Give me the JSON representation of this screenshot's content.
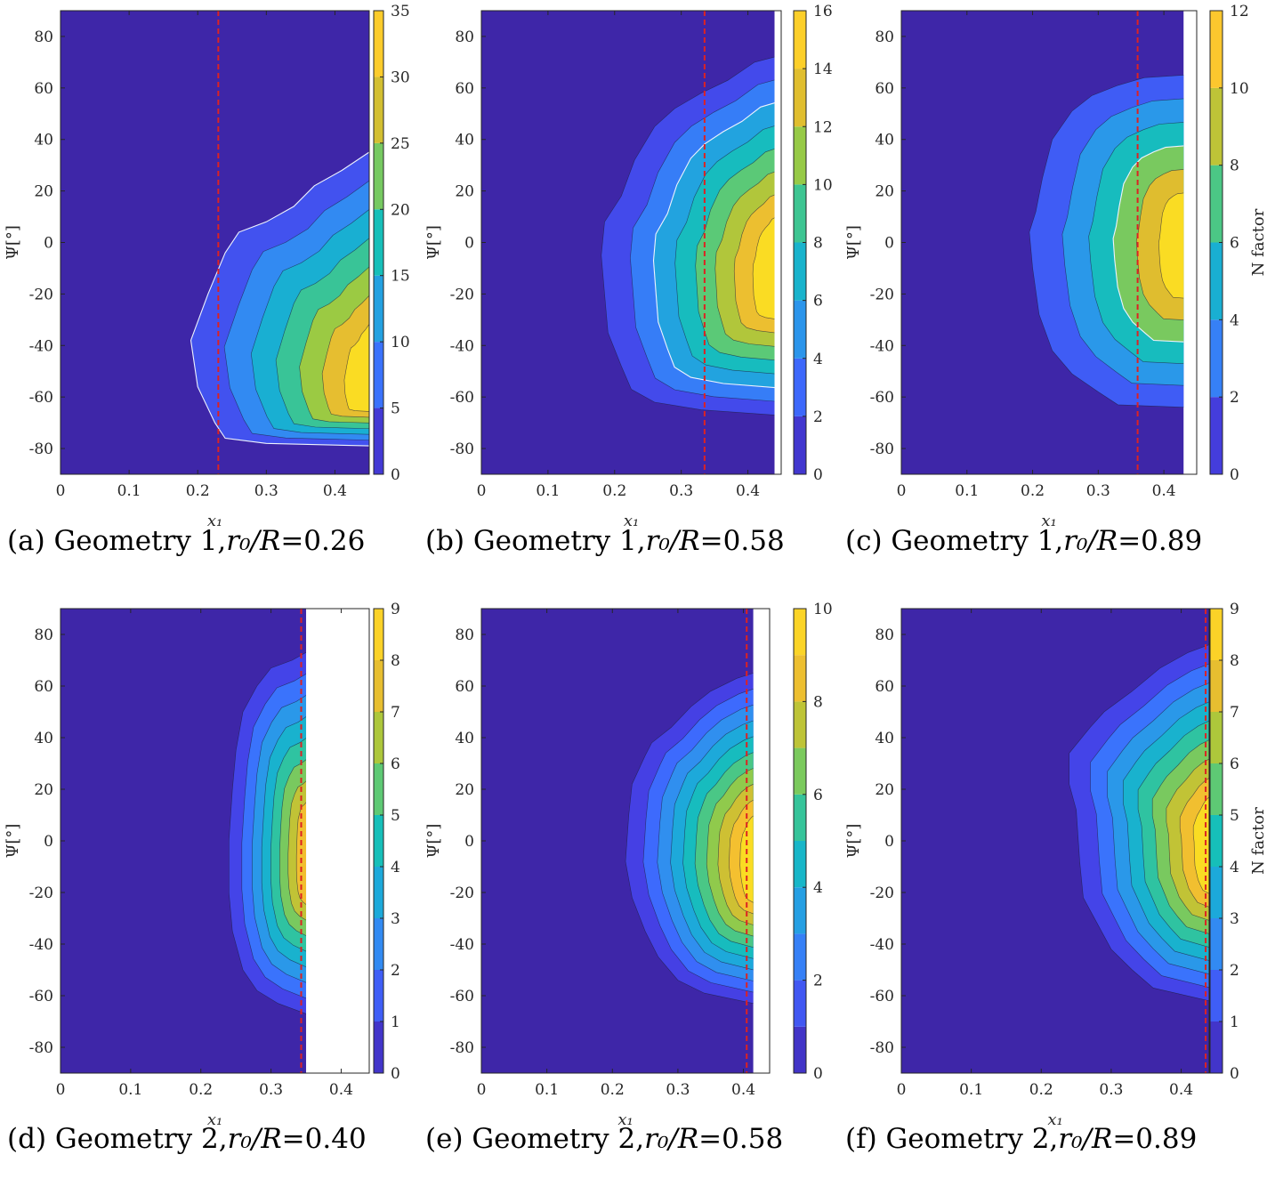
{
  "colors": {
    "colormap": [
      "#3e26a8",
      "#4541e6",
      "#3c6dfe",
      "#2f92ee",
      "#1aacd7",
      "#16bfb9",
      "#56c97b",
      "#a0ca3f",
      "#dcbd2f",
      "#fdc131",
      "#f9e71d"
    ],
    "marker_line": "#dd2222",
    "neutral_line": "#eef4ff"
  },
  "chart_data": [
    {
      "type": "contourf",
      "caption": {
        "letter": "(a)",
        "text": "Geometry 1,",
        "var": "r₀/R",
        "value": "=0.26"
      },
      "xlabel": "x₁",
      "ylabel": "Ψ[°]",
      "xlim": [
        0,
        0.45
      ],
      "ylim": [
        -90,
        90
      ],
      "xticks": [
        0,
        0.1,
        0.2,
        0.3,
        0.4
      ],
      "xticklabels": [
        "0",
        "0.1",
        "0.2",
        "0.3",
        "0.4"
      ],
      "yticks": [
        -80,
        -60,
        -40,
        -20,
        0,
        20,
        40,
        60,
        80
      ],
      "yticklabels": [
        "-80",
        "-60",
        "-40",
        "-20",
        "0",
        "20",
        "40",
        "60",
        "80"
      ],
      "data_xmax": 0.45,
      "x_threshold": 0.23,
      "levels": [
        0,
        5,
        10,
        15,
        20,
        25,
        30,
        35
      ],
      "clim": [
        0,
        35
      ],
      "peak": 31,
      "colorbar_ticks": [
        0,
        5,
        10,
        15,
        20,
        25,
        30,
        35
      ],
      "colorbar_label": "",
      "front": {
        "outer": [
          [
            0.455,
            36
          ],
          [
            0.41,
            28
          ],
          [
            0.37,
            22
          ],
          [
            0.34,
            14
          ],
          [
            0.3,
            8
          ],
          [
            0.26,
            4
          ],
          [
            0.24,
            -4
          ],
          [
            0.215,
            -20
          ],
          [
            0.19,
            -38
          ],
          [
            0.2,
            -56
          ],
          [
            0.225,
            -70
          ],
          [
            0.24,
            -76
          ],
          [
            0.3,
            -78
          ],
          [
            0.455,
            -79
          ]
        ],
        "peak_y": -60,
        "peak_h": 12
      },
      "tracer": 1
    },
    {
      "type": "contourf",
      "caption": {
        "letter": "(b)",
        "text": "Geometry 1,",
        "var": "r₀/R",
        "value": "=0.58"
      },
      "xlabel": "x₁",
      "ylabel": "Ψ[°]",
      "xlim": [
        0,
        0.45
      ],
      "ylim": [
        -90,
        90
      ],
      "xticks": [
        0,
        0.1,
        0.2,
        0.3,
        0.4
      ],
      "xticklabels": [
        "0",
        "0.1",
        "0.2",
        "0.3",
        "0.4"
      ],
      "yticks": [
        -80,
        -60,
        -40,
        -20,
        0,
        20,
        40,
        60,
        80
      ],
      "yticklabels": [
        "-80",
        "-60",
        "-40",
        "-20",
        "0",
        "20",
        "40",
        "60",
        "80"
      ],
      "data_xmax": 0.44,
      "x_threshold": 0.335,
      "levels": [
        0,
        2,
        4,
        6,
        8,
        10,
        12,
        14,
        16
      ],
      "clim": [
        0,
        16
      ],
      "peak": 14.5,
      "colorbar_ticks": [
        0,
        2,
        4,
        6,
        8,
        10,
        12,
        14,
        16
      ],
      "colorbar_label": "",
      "front": {
        "outer": [
          [
            0.44,
            72
          ],
          [
            0.41,
            70
          ],
          [
            0.37,
            63
          ],
          [
            0.33,
            58
          ],
          [
            0.29,
            52
          ],
          [
            0.26,
            45
          ],
          [
            0.23,
            32
          ],
          [
            0.21,
            18
          ],
          [
            0.185,
            8
          ],
          [
            0.18,
            -5
          ],
          [
            0.185,
            -20
          ],
          [
            0.19,
            -35
          ],
          [
            0.21,
            -48
          ],
          [
            0.225,
            -57
          ],
          [
            0.26,
            -62
          ],
          [
            0.33,
            -65
          ],
          [
            0.44,
            -67
          ]
        ],
        "peak_y": -15,
        "peak_h": 18
      },
      "tracer": 3
    },
    {
      "type": "contourf",
      "caption": {
        "letter": "(c)",
        "text": "Geometry 1,",
        "var": "r₀/R",
        "value": "=0.89"
      },
      "xlabel": "x₁",
      "ylabel": "Ψ[°]",
      "xlim": [
        0,
        0.45
      ],
      "ylim": [
        -90,
        90
      ],
      "xticks": [
        0,
        0.1,
        0.2,
        0.3,
        0.4
      ],
      "xticklabels": [
        "0",
        "0.1",
        "0.2",
        "0.3",
        "0.4"
      ],
      "yticks": [
        -80,
        -60,
        -40,
        -20,
        0,
        20,
        40,
        60,
        80
      ],
      "yticklabels": [
        "-80",
        "-60",
        "-40",
        "-20",
        "0",
        "20",
        "40",
        "60",
        "80"
      ],
      "data_xmax": 0.43,
      "x_threshold": 0.36,
      "levels": [
        0,
        2,
        4,
        6,
        8,
        10,
        12
      ],
      "clim": [
        0,
        12
      ],
      "peak": 11.3,
      "colorbar_ticks": [
        0,
        2,
        4,
        6,
        8,
        10,
        12
      ],
      "colorbar_label": "N factor",
      "front": {
        "outer": [
          [
            0.43,
            65
          ],
          [
            0.37,
            64
          ],
          [
            0.33,
            61
          ],
          [
            0.29,
            57
          ],
          [
            0.26,
            51
          ],
          [
            0.23,
            40
          ],
          [
            0.215,
            25
          ],
          [
            0.205,
            12
          ],
          [
            0.195,
            4
          ],
          [
            0.2,
            -10
          ],
          [
            0.21,
            -28
          ],
          [
            0.23,
            -42
          ],
          [
            0.26,
            -51
          ],
          [
            0.3,
            -58
          ],
          [
            0.33,
            -63
          ],
          [
            0.43,
            -64
          ]
        ],
        "peak_y": -2,
        "peak_h": 26
      },
      "tracer": 4
    },
    {
      "type": "contourf",
      "caption": {
        "letter": "(d)",
        "text": "Geometry 2,",
        "var": "r₀/R",
        "value": "=0.40"
      },
      "xlabel": "x₁",
      "ylabel": "Ψ[°]",
      "xlim": [
        0,
        0.44
      ],
      "ylim": [
        -90,
        90
      ],
      "xticks": [
        0,
        0.1,
        0.2,
        0.3,
        0.4
      ],
      "xticklabels": [
        "0",
        "0.1",
        "0.2",
        "0.3",
        "0.4"
      ],
      "yticks": [
        -80,
        -60,
        -40,
        -20,
        0,
        20,
        40,
        60,
        80
      ],
      "yticklabels": [
        "-80",
        "-60",
        "-40",
        "-20",
        "0",
        "20",
        "40",
        "60",
        "80"
      ],
      "data_xmax": 0.35,
      "x_threshold": 0.343,
      "levels": [
        0,
        1,
        2,
        3,
        4,
        5,
        6,
        7,
        8,
        9
      ],
      "clim": [
        0,
        9
      ],
      "peak": 7.6,
      "colorbar_ticks": [
        0,
        1,
        2,
        3,
        4,
        5,
        6,
        7,
        8,
        9
      ],
      "colorbar_label": "",
      "front": {
        "outer": [
          [
            0.35,
            73
          ],
          [
            0.33,
            70
          ],
          [
            0.3,
            67
          ],
          [
            0.28,
            60
          ],
          [
            0.26,
            50
          ],
          [
            0.25,
            35
          ],
          [
            0.245,
            20
          ],
          [
            0.24,
            0
          ],
          [
            0.24,
            -20
          ],
          [
            0.245,
            -35
          ],
          [
            0.26,
            -50
          ],
          [
            0.28,
            -58
          ],
          [
            0.31,
            -63
          ],
          [
            0.35,
            -67
          ]
        ],
        "peak_y": -8,
        "peak_h": 28
      },
      "tracer": -1
    },
    {
      "type": "contourf",
      "caption": {
        "letter": "(e)",
        "text": "Geometry 2,",
        "var": "r₀/R",
        "value": "=0.58"
      },
      "xlabel": "x₁",
      "ylabel": "Ψ[°]",
      "xlim": [
        0,
        0.44
      ],
      "ylim": [
        -90,
        90
      ],
      "xticks": [
        0,
        0.1,
        0.2,
        0.3,
        0.4
      ],
      "xticklabels": [
        "0",
        "0.1",
        "0.2",
        "0.3",
        "0.4"
      ],
      "yticks": [
        -80,
        -60,
        -40,
        -20,
        0,
        20,
        40,
        60,
        80
      ],
      "yticklabels": [
        "-80",
        "-60",
        "-40",
        "-20",
        "0",
        "20",
        "40",
        "60",
        "80"
      ],
      "data_xmax": 0.415,
      "x_threshold": 0.405,
      "levels": [
        0,
        1,
        2,
        3,
        4,
        5,
        6,
        7,
        8,
        9,
        10
      ],
      "clim": [
        0,
        10
      ],
      "peak": 9.2,
      "colorbar_ticks": [
        0,
        2,
        4,
        6,
        8,
        10
      ],
      "colorbar_label": "",
      "front": {
        "outer": [
          [
            0.415,
            65
          ],
          [
            0.39,
            63
          ],
          [
            0.35,
            58
          ],
          [
            0.32,
            52
          ],
          [
            0.29,
            44
          ],
          [
            0.26,
            38
          ],
          [
            0.25,
            33
          ],
          [
            0.23,
            22
          ],
          [
            0.225,
            10
          ],
          [
            0.22,
            -8
          ],
          [
            0.23,
            -22
          ],
          [
            0.25,
            -35
          ],
          [
            0.27,
            -45
          ],
          [
            0.3,
            -54
          ],
          [
            0.34,
            -59
          ],
          [
            0.415,
            -63
          ]
        ],
        "peak_y": -10,
        "peak_h": 28
      },
      "tracer": -1
    },
    {
      "type": "contourf",
      "caption": {
        "letter": "(f)",
        "text": "Geometry 2,",
        "var": "r₀/R",
        "value": "=0.89"
      },
      "xlabel": "x₁",
      "ylabel": "Ψ[°]",
      "xlim": [
        0,
        0.44
      ],
      "ylim": [
        -90,
        90
      ],
      "xticks": [
        0,
        0.1,
        0.2,
        0.3,
        0.4
      ],
      "xticklabels": [
        "0",
        "0.1",
        "0.2",
        "0.3",
        "0.4"
      ],
      "yticks": [
        -80,
        -60,
        -40,
        -20,
        0,
        20,
        40,
        60,
        80
      ],
      "yticklabels": [
        "-80",
        "-60",
        "-40",
        "-20",
        "0",
        "20",
        "40",
        "60",
        "80"
      ],
      "data_xmax": 0.44,
      "x_threshold": 0.435,
      "levels": [
        0,
        1,
        2,
        3,
        4,
        5,
        6,
        7,
        8,
        9
      ],
      "clim": [
        0,
        9
      ],
      "peak": 8.3,
      "colorbar_ticks": [
        0,
        1,
        2,
        3,
        4,
        5,
        6,
        7,
        8,
        9
      ],
      "colorbar_label": "N factor",
      "front": {
        "outer": [
          [
            0.44,
            76
          ],
          [
            0.41,
            73
          ],
          [
            0.37,
            67
          ],
          [
            0.33,
            58
          ],
          [
            0.29,
            50
          ],
          [
            0.27,
            44
          ],
          [
            0.24,
            34
          ],
          [
            0.24,
            22
          ],
          [
            0.25,
            12
          ],
          [
            0.255,
            -8
          ],
          [
            0.26,
            -22
          ],
          [
            0.28,
            -32
          ],
          [
            0.3,
            -42
          ],
          [
            0.33,
            -50
          ],
          [
            0.36,
            -57
          ],
          [
            0.44,
            -62
          ]
        ],
        "peak_y": -5,
        "peak_h": 30
      },
      "tracer": -1
    }
  ]
}
